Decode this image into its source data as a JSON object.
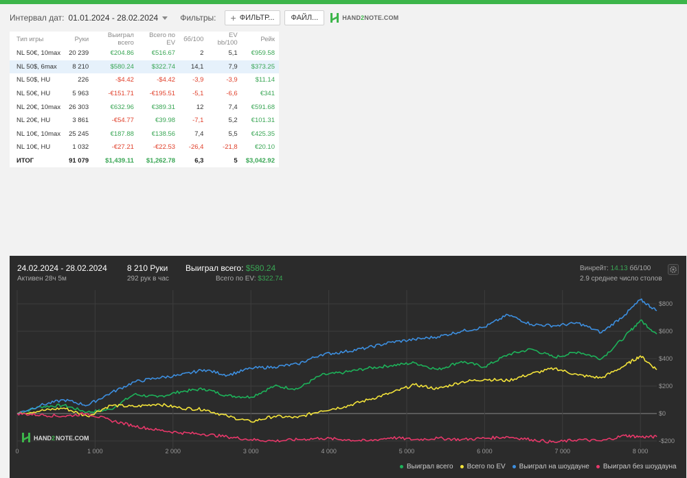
{
  "toolbar": {
    "date_label": "Интервал дат:",
    "date_value": "01.01.2024 - 28.02.2024",
    "filters_label": "Фильтры:",
    "filter_button": "ФИЛЬТР...",
    "file_button": "ФАЙЛ...",
    "brand": {
      "part1": "HAND",
      "part2": "2",
      "part3": "NOTE.COM"
    }
  },
  "stats_table": {
    "headers": [
      "Тип игры",
      "Руки",
      "Выиграл всего",
      "Всего по EV",
      "бб/100",
      "EV bb/100",
      "Рейк"
    ],
    "rows": [
      {
        "game": "NL 50€, 10max",
        "hands": "20 239",
        "won": "€204.86",
        "ev": "€516.67",
        "bb100": "2",
        "evbb": "5,1",
        "rake": "€959.58",
        "won_neg": false,
        "ev_neg": false,
        "bb_neg": false,
        "evbb_neg": false
      },
      {
        "game": "NL 50$, 6max",
        "hands": "8 210",
        "won": "$580.24",
        "ev": "$322.74",
        "bb100": "14,1",
        "evbb": "7,9",
        "rake": "$373.25",
        "won_neg": false,
        "ev_neg": false,
        "bb_neg": false,
        "evbb_neg": false,
        "highlight": true
      },
      {
        "game": "NL 50$, HU",
        "hands": "226",
        "won": "-$4.42",
        "ev": "-$4.42",
        "bb100": "-3,9",
        "evbb": "-3,9",
        "rake": "$11.14",
        "won_neg": true,
        "ev_neg": true,
        "bb_neg": true,
        "evbb_neg": true
      },
      {
        "game": "NL 50€, HU",
        "hands": "5 963",
        "won": "-€151.71",
        "ev": "-€195.51",
        "bb100": "-5,1",
        "evbb": "-6,6",
        "rake": "€341",
        "won_neg": true,
        "ev_neg": true,
        "bb_neg": true,
        "evbb_neg": true
      },
      {
        "game": "NL 20€, 10max",
        "hands": "26 303",
        "won": "€632.96",
        "ev": "€389.31",
        "bb100": "12",
        "evbb": "7,4",
        "rake": "€591.68",
        "won_neg": false,
        "ev_neg": false,
        "bb_neg": false,
        "evbb_neg": false
      },
      {
        "game": "NL 20€, HU",
        "hands": "3 861",
        "won": "-€54.77",
        "ev": "€39.98",
        "bb100": "-7,1",
        "evbb": "5,2",
        "rake": "€101.31",
        "won_neg": true,
        "ev_neg": false,
        "bb_neg": true,
        "evbb_neg": false
      },
      {
        "game": "NL 10€, 10max",
        "hands": "25 245",
        "won": "€187.88",
        "ev": "€138.56",
        "bb100": "7,4",
        "evbb": "5,5",
        "rake": "€425.35",
        "won_neg": false,
        "ev_neg": false,
        "bb_neg": false,
        "evbb_neg": false
      },
      {
        "game": "NL 10€, HU",
        "hands": "1 032",
        "won": "-€27.21",
        "ev": "-€22.53",
        "bb100": "-26,4",
        "evbb": "-21,8",
        "rake": "€20.10",
        "won_neg": true,
        "ev_neg": true,
        "bb_neg": true,
        "evbb_neg": true
      }
    ],
    "total": {
      "game": "ИТОГ",
      "hands": "91 079",
      "won": "$1,439.11",
      "ev": "$1,262.78",
      "bb100": "6,3",
      "evbb": "5",
      "rake": "$3,042.92"
    }
  },
  "session": {
    "dates": "24.02.2024 - 28.02.2024",
    "active": "Активен 28ч 5м",
    "hands": "8 210 Руки",
    "hands_per_hour": "292 рук в час",
    "won_label": "Выиграл всего:",
    "won_value": "$580.24",
    "ev_label": "Всего по EV:",
    "ev_value": "$322.74",
    "winrate_label": "Винрейт:",
    "winrate_value": "14.13",
    "winrate_unit": "бб/100",
    "tables_text": "2.9 среднее число столов"
  },
  "colors": {
    "won": "#1db35a",
    "ev": "#f4e43a",
    "showdown": "#3d8fe0",
    "no_showdown": "#e8386a",
    "positive": "#3aa655",
    "negative": "#e0412c",
    "accent": "#3cb54a"
  },
  "chart_data": {
    "type": "line",
    "x_range": [
      0,
      8210
    ],
    "y_range": [
      -250,
      900
    ],
    "x_ticks": [
      0,
      1000,
      2000,
      3000,
      4000,
      5000,
      6000,
      7000,
      8000
    ],
    "x_tick_labels": [
      "0",
      "1 000",
      "2 000",
      "3 000",
      "4 000",
      "5 000",
      "6 000",
      "7 000",
      "8 000"
    ],
    "y_ticks": [
      -200,
      0,
      200,
      400,
      600,
      800
    ],
    "y_tick_labels": [
      "-$200",
      "$0",
      "$200",
      "$400",
      "$600",
      "$800"
    ],
    "grid": true,
    "legend_position": "bottom-right",
    "series": [
      {
        "name": "Выиграл всего",
        "color": "#1db35a",
        "x": [
          0,
          300,
          600,
          900,
          1200,
          1500,
          1800,
          2100,
          2400,
          2700,
          3000,
          3300,
          3600,
          3900,
          4200,
          4500,
          4800,
          5100,
          5400,
          5700,
          6000,
          6300,
          6600,
          6900,
          7200,
          7500,
          7800,
          8000,
          8210
        ],
        "y": [
          0,
          50,
          60,
          10,
          30,
          140,
          120,
          160,
          180,
          130,
          120,
          200,
          180,
          280,
          300,
          330,
          350,
          370,
          320,
          380,
          340,
          430,
          470,
          410,
          450,
          400,
          560,
          680,
          580
        ]
      },
      {
        "name": "Всего по EV",
        "color": "#f4e43a",
        "x": [
          0,
          300,
          600,
          900,
          1200,
          1500,
          1800,
          2100,
          2400,
          2700,
          3000,
          3300,
          3600,
          3900,
          4200,
          4500,
          4800,
          5100,
          5400,
          5700,
          6000,
          6300,
          6600,
          6900,
          7200,
          7500,
          7800,
          8000,
          8210
        ],
        "y": [
          0,
          20,
          40,
          -20,
          60,
          50,
          70,
          40,
          30,
          -20,
          -60,
          -20,
          -30,
          20,
          50,
          100,
          150,
          210,
          180,
          230,
          250,
          240,
          290,
          330,
          280,
          260,
          350,
          420,
          320
        ]
      },
      {
        "name": "Выиграл на шоудауне",
        "color": "#3d8fe0",
        "x": [
          0,
          300,
          600,
          900,
          1200,
          1500,
          1800,
          2100,
          2400,
          2700,
          3000,
          3300,
          3600,
          3900,
          4200,
          4500,
          4800,
          5100,
          5400,
          5700,
          6000,
          6300,
          6600,
          6900,
          7200,
          7500,
          7800,
          8000,
          8210
        ],
        "y": [
          0,
          60,
          100,
          60,
          150,
          230,
          260,
          280,
          320,
          280,
          330,
          340,
          360,
          430,
          450,
          480,
          520,
          540,
          560,
          600,
          630,
          720,
          650,
          640,
          660,
          590,
          720,
          830,
          750
        ]
      },
      {
        "name": "Выиграл без шоудауна",
        "color": "#e8386a",
        "x": [
          0,
          300,
          600,
          900,
          1200,
          1500,
          1800,
          2100,
          2400,
          2700,
          3000,
          3300,
          3600,
          3900,
          4200,
          4500,
          4800,
          5100,
          5400,
          5700,
          6000,
          6300,
          6600,
          6900,
          7200,
          7500,
          7800,
          8000,
          8210
        ],
        "y": [
          0,
          -10,
          -20,
          0,
          -50,
          -90,
          -120,
          -140,
          -150,
          -170,
          -190,
          -200,
          -190,
          -180,
          -190,
          -200,
          -175,
          -190,
          -180,
          -190,
          -180,
          -170,
          -190,
          -210,
          -190,
          -200,
          -160,
          -170,
          -170
        ]
      }
    ]
  }
}
